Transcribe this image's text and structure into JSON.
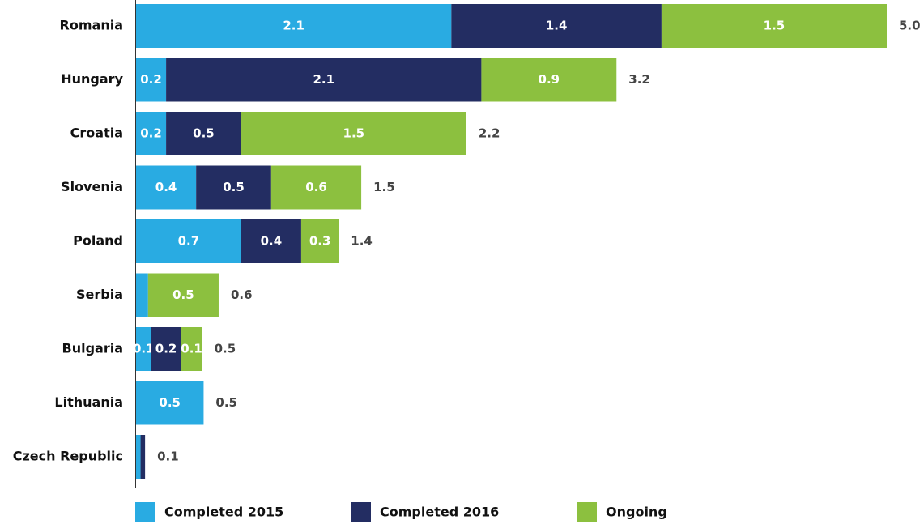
{
  "chart_data": {
    "type": "stacked-bar-horizontal",
    "categories": [
      "Romania",
      "Hungary",
      "Croatia",
      "Slovenia",
      "Poland",
      "Serbia",
      "Bulgaria",
      "Lithuania",
      "Czech Republic"
    ],
    "xlim": [
      0,
      5
    ],
    "series": [
      {
        "name": "Completed 2015",
        "color": "#29abe2",
        "values": [
          2.1,
          0.2,
          0.2,
          0.4,
          0.7,
          0.08,
          0.1,
          0.45,
          0.03
        ],
        "value_labels": [
          "2.1",
          "0.2",
          "0.2",
          "0.4",
          "0.7",
          null,
          "0.1",
          "0.5",
          null
        ]
      },
      {
        "name": "Completed 2016",
        "color": "#232d62",
        "values": [
          1.4,
          2.1,
          0.5,
          0.5,
          0.4,
          0,
          0.2,
          0,
          0.03
        ],
        "value_labels": [
          "1.4",
          "2.1",
          "0.5",
          "0.5",
          "0.4",
          null,
          "0.2",
          null,
          null
        ]
      },
      {
        "name": "Ongoing",
        "color": "#8cc03f",
        "values": [
          1.5,
          0.9,
          1.5,
          0.6,
          0.25,
          0.47,
          0.14,
          0,
          0
        ],
        "value_labels": [
          "1.5",
          "0.9",
          "1.5",
          "0.6",
          "0.3",
          "0.5",
          "0.1",
          null,
          null
        ]
      }
    ],
    "totals": [
      5.0,
      3.2,
      2.2,
      1.5,
      1.4,
      0.6,
      0.5,
      0.5,
      0.1
    ],
    "total_labels": [
      "5.0",
      "3.2",
      "2.2",
      "1.5",
      "1.4",
      "0.6",
      "0.5",
      "0.5",
      "0.1"
    ]
  }
}
